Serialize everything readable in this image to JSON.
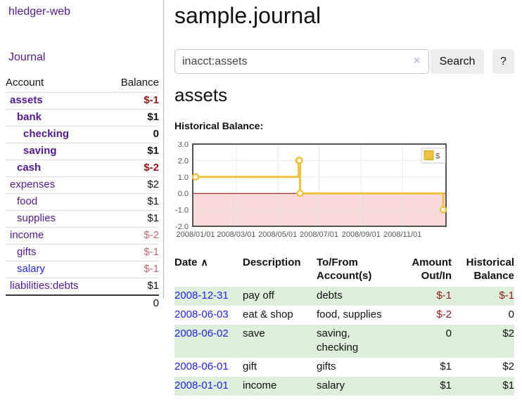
{
  "brand": "hledger-web",
  "nav": {
    "journal": "Journal"
  },
  "sidebar": {
    "account_header": "Account",
    "balance_header": "Balance",
    "accounts": [
      {
        "name": "assets",
        "balance": "$-1"
      },
      {
        "name": "bank",
        "balance": "$1"
      },
      {
        "name": "checking",
        "balance": "0"
      },
      {
        "name": "saving",
        "balance": "$1"
      },
      {
        "name": "cash",
        "balance": "$-2"
      },
      {
        "name": "expenses",
        "balance": "$2"
      },
      {
        "name": "food",
        "balance": "$1"
      },
      {
        "name": "supplies",
        "balance": "$1"
      },
      {
        "name": "income",
        "balance": "$-2"
      },
      {
        "name": "gifts",
        "balance": "$-1"
      },
      {
        "name": "salary",
        "balance": "$-1"
      },
      {
        "name": "liabilities:debts",
        "balance": "$1"
      }
    ],
    "total": "0"
  },
  "main": {
    "title": "sample.journal",
    "search": {
      "value": "inacct:assets",
      "clear_icon": "×",
      "button": "Search",
      "help": "?"
    },
    "heading": "assets",
    "chart_title": "Historical Balance:"
  },
  "chart_data": {
    "type": "line",
    "title": "Historical Balance",
    "step": true,
    "series": [
      {
        "name": "$",
        "color": "#EDC240",
        "points": [
          {
            "date": "2008-01-01",
            "day": 0,
            "value": 1
          },
          {
            "date": "2008-06-01",
            "day": 152,
            "value": 2
          },
          {
            "date": "2008-06-02",
            "day": 153,
            "value": 2
          },
          {
            "date": "2008-06-03",
            "day": 154,
            "value": 0
          },
          {
            "date": "2008-12-31",
            "day": 365,
            "value": -1
          }
        ]
      }
    ],
    "xlim_days": [
      0,
      365
    ],
    "ylim": [
      -2,
      3
    ],
    "ytick_values": [
      3,
      2,
      1,
      0,
      -1,
      -2
    ],
    "yticks": [
      "3.0",
      "2.0",
      "1.0",
      "0.0",
      "-1.0",
      "-2.0"
    ],
    "xticks": [
      {
        "label": "2008/01/01",
        "day": 0
      },
      {
        "label": "2008/03/01",
        "day": 60
      },
      {
        "label": "2008/05/01",
        "day": 121
      },
      {
        "label": "2008/07/01",
        "day": 182
      },
      {
        "label": "2008/09/01",
        "day": 244
      },
      {
        "label": "2008/11/01",
        "day": 305
      }
    ],
    "legend": "$",
    "grid": true,
    "legend_position": "top-right",
    "negative_fill": "#f9d9d9",
    "zero_line_color": "#8b0000",
    "border_color": "#545454"
  },
  "register": {
    "headers": {
      "date": "Date",
      "sort_icon": "∧",
      "description": "Description",
      "account_line1": "To/From",
      "account_line2": "Account(s)",
      "amount_line1": "Amount",
      "amount_line2": "Out/In",
      "balance_line1": "Historical",
      "balance_line2": "Balance"
    },
    "rows": [
      {
        "date": "2008-12-31",
        "description": "pay off",
        "accounts": "debts",
        "amount": "$-1",
        "balance": "$-1"
      },
      {
        "date": "2008-06-03",
        "description": "eat & shop",
        "accounts": "food, supplies",
        "amount": "$-2",
        "balance": "0"
      },
      {
        "date": "2008-06-02",
        "description": "save",
        "accounts": "saving, checking",
        "amount": "0",
        "balance": "$2"
      },
      {
        "date": "2008-06-01",
        "description": "gift",
        "accounts": "gifts",
        "amount": "$1",
        "balance": "$2"
      },
      {
        "date": "2008-01-01",
        "description": "income",
        "accounts": "salary",
        "amount": "$1",
        "balance": "$1"
      }
    ]
  }
}
